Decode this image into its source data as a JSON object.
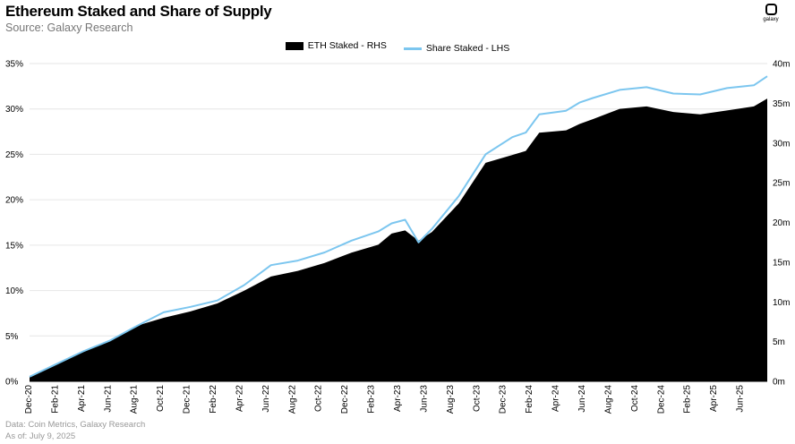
{
  "title": "Ethereum Staked and Share of Supply",
  "subtitle": "Source: Galaxy Research",
  "logo_text": "galaxy",
  "footer_line1": "Data: Coin Metrics, Galaxy Research",
  "footer_line2": "As of: July 9, 2025",
  "chart_data": {
    "type": "area",
    "title": "Ethereum Staked and Share of Supply",
    "legend_position": "top-center",
    "grid": true,
    "x_ticks": [
      "Dec-20",
      "Feb-21",
      "Apr-21",
      "Jun-21",
      "Aug-21",
      "Oct-21",
      "Dec-21",
      "Feb-22",
      "Apr-22",
      "Jun-22",
      "Aug-22",
      "Oct-22",
      "Dec-22",
      "Feb-23",
      "Apr-23",
      "Jun-23",
      "Aug-23",
      "Oct-23",
      "Dec-23",
      "Feb-24",
      "Apr-24",
      "Jun-24",
      "Aug-24",
      "Oct-24",
      "Dec-24",
      "Feb-25",
      "Apr-25",
      "Jun-25"
    ],
    "left_axis": {
      "ticks": [
        "0%",
        "5%",
        "10%",
        "15%",
        "20%",
        "25%",
        "30%",
        "35%"
      ],
      "range": [
        0,
        35
      ],
      "unit": "%"
    },
    "right_axis": {
      "ticks": [
        "0m",
        "5m",
        "10m",
        "15m",
        "20m",
        "25m",
        "30m",
        "35m",
        "40m"
      ],
      "range": [
        0,
        40
      ],
      "unit": "m"
    },
    "series": [
      {
        "name": "ETH Staked - RHS",
        "axis": "right",
        "color": "#000000",
        "x": [
          "2020-12",
          "2021-02",
          "2021-04",
          "2021-06",
          "2021-08",
          "2021-10",
          "2021-12",
          "2022-02",
          "2022-04",
          "2022-06",
          "2022-08",
          "2022-10",
          "2022-12",
          "2023-02",
          "2023-03",
          "2023-04",
          "2023-05",
          "2023-06",
          "2023-08",
          "2023-10",
          "2023-12",
          "2024-01",
          "2024-02",
          "2024-04",
          "2024-05",
          "2024-06",
          "2024-08",
          "2024-10",
          "2024-12",
          "2025-02",
          "2025-04",
          "2025-06",
          "2025-07"
        ],
        "values": [
          0.6,
          2.2,
          3.7,
          5.2,
          7.0,
          8.0,
          8.8,
          9.8,
          11.4,
          13.2,
          13.9,
          14.9,
          16.2,
          17.2,
          18.6,
          19.0,
          17.7,
          18.8,
          22.4,
          27.5,
          28.5,
          29.0,
          31.3,
          31.6,
          32.4,
          33.0,
          34.3,
          34.6,
          33.9,
          33.6,
          34.1,
          34.6,
          35.6
        ]
      },
      {
        "name": "Share Staked - LHS",
        "axis": "left",
        "color": "#7cc6ef",
        "x": [
          "2020-12",
          "2021-02",
          "2021-04",
          "2021-06",
          "2021-08",
          "2021-10",
          "2021-12",
          "2022-02",
          "2022-04",
          "2022-06",
          "2022-08",
          "2022-10",
          "2022-12",
          "2023-02",
          "2023-03",
          "2023-04",
          "2023-05",
          "2023-06",
          "2023-08",
          "2023-10",
          "2023-12",
          "2024-01",
          "2024-02",
          "2024-04",
          "2024-05",
          "2024-06",
          "2024-08",
          "2024-10",
          "2024-12",
          "2025-02",
          "2025-04",
          "2025-06",
          "2025-07"
        ],
        "values": [
          0.5,
          1.9,
          3.3,
          4.5,
          6.1,
          7.6,
          8.2,
          8.9,
          10.6,
          12.8,
          13.3,
          14.2,
          15.5,
          16.5,
          17.4,
          17.8,
          15.3,
          16.8,
          20.4,
          25.0,
          26.9,
          27.4,
          29.4,
          29.8,
          30.7,
          31.2,
          32.1,
          32.4,
          31.7,
          31.6,
          32.3,
          32.6,
          33.6
        ]
      }
    ]
  }
}
